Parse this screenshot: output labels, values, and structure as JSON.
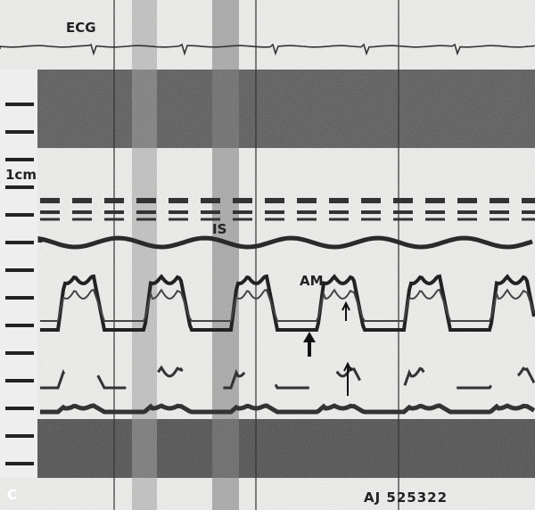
{
  "labels": {
    "ecg": "ECG",
    "scale": "1cm",
    "septum": "IS",
    "mitral": "AM",
    "panel": "C",
    "patient": "AJ 525322"
  }
}
